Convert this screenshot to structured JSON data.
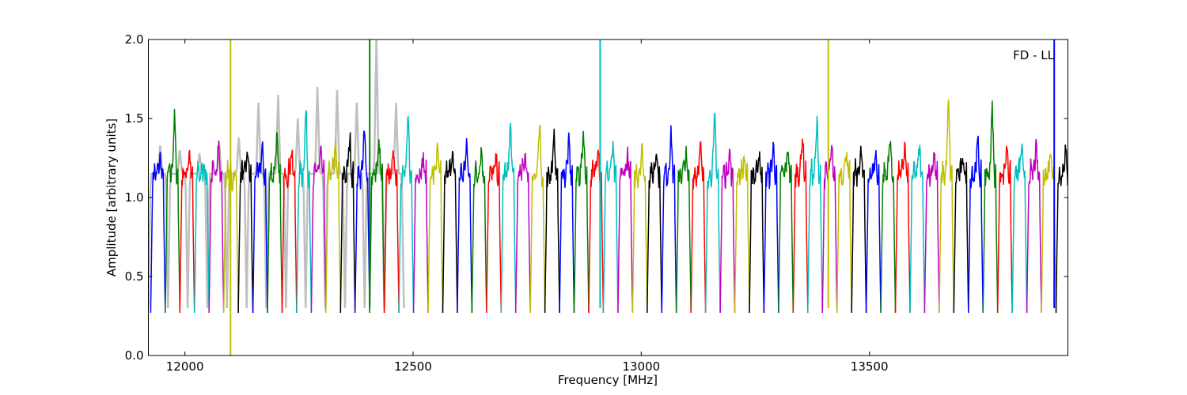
{
  "chart_data": {
    "type": "line",
    "title": "",
    "xlabel": "Frequency [MHz]",
    "ylabel": "Amplitude [arbitrary units]",
    "xlim": [
      11920,
      13935
    ],
    "ylim": [
      0,
      2.0
    ],
    "x_ticks": [
      12000,
      12500,
      13000,
      13500
    ],
    "x_tick_labels": [
      "12000",
      "12500",
      "13000",
      "13500"
    ],
    "y_ticks": [
      0.0,
      0.5,
      1.0,
      1.5,
      2.0
    ],
    "y_tick_labels": [
      "0.0",
      "0.5",
      "1.0",
      "1.5",
      "2.0"
    ],
    "grid": false,
    "legend": "none",
    "annotation": {
      "text": "FD - LL",
      "position": "top-right"
    },
    "background_series": {
      "color": "#bfbfbf",
      "x_range": [
        11920,
        12480
      ],
      "peak_values": [
        1.33,
        1.3,
        1.28,
        1.35,
        1.38,
        1.6,
        1.65,
        1.5,
        1.7,
        1.68,
        1.6,
        2.0,
        1.6
      ]
    },
    "color_cycle": [
      "#0000ff",
      "#008000",
      "#ff0000",
      "#00bfbf",
      "#bf00bf",
      "#bfbf00",
      "#000000"
    ],
    "channel_width_mhz": 32,
    "channel_start_mhz": 11925,
    "channel_count": 63,
    "channel_shape": {
      "edge_min": 0.27,
      "body_level": 1.15
    },
    "channel_peaks": [
      1.25,
      1.51,
      1.28,
      1.2,
      1.34,
      1.1,
      1.28,
      1.3,
      1.38,
      1.28,
      1.55,
      1.3,
      1.32,
      1.38,
      1.41,
      1.33,
      1.28,
      1.49,
      1.24,
      1.3,
      1.28,
      1.32,
      1.3,
      1.22,
      1.45,
      1.28,
      1.42,
      1.38,
      1.35,
      1.42,
      1.35,
      1.3,
      1.26,
      1.3,
      1.31,
      1.4,
      1.26,
      1.31,
      1.51,
      1.28,
      1.24,
      1.28,
      1.32,
      1.3,
      1.38,
      1.47,
      1.29,
      1.3,
      1.28,
      1.27,
      1.38,
      1.32,
      1.3,
      1.27,
      1.59,
      1.24,
      1.35,
      1.57,
      1.33,
      1.31,
      1.31,
      1.31,
      1.3
    ],
    "spikes": [
      {
        "x": 12100,
        "y_min": 0.0,
        "y_max": 2.0,
        "color": "#bfbf00"
      },
      {
        "x": 12405,
        "y_min": 0.3,
        "y_max": 2.0,
        "color": "#008000"
      },
      {
        "x": 12910,
        "y_min": 0.3,
        "y_max": 2.0,
        "color": "#00bfbf"
      },
      {
        "x": 13410,
        "y_min": 0.3,
        "y_max": 2.0,
        "color": "#bfbf00"
      },
      {
        "x": 13905,
        "y_min": 0.3,
        "y_max": 2.0,
        "color": "#0000ff"
      }
    ]
  }
}
